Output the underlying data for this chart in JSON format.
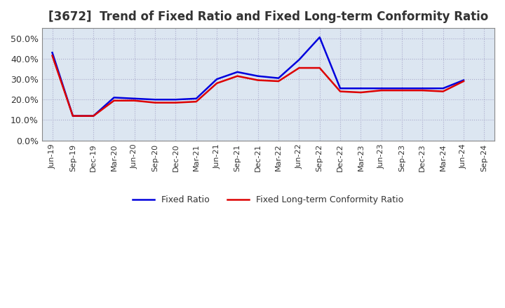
{
  "title": "[3672]  Trend of Fixed Ratio and Fixed Long-term Conformity Ratio",
  "title_fontsize": 12,
  "title_color": "#333333",
  "x_labels": [
    "Jun-19",
    "Sep-19",
    "Dec-19",
    "Mar-20",
    "Jun-20",
    "Sep-20",
    "Dec-20",
    "Mar-21",
    "Jun-21",
    "Sep-21",
    "Dec-21",
    "Mar-22",
    "Jun-22",
    "Sep-22",
    "Dec-22",
    "Mar-23",
    "Jun-23",
    "Sep-23",
    "Dec-23",
    "Mar-24",
    "Jun-24",
    "Sep-24"
  ],
  "fixed_ratio": [
    0.43,
    0.12,
    0.12,
    0.21,
    0.205,
    0.2,
    0.2,
    0.205,
    0.3,
    0.335,
    0.315,
    0.305,
    0.395,
    0.505,
    0.255,
    0.255,
    0.255,
    0.255,
    0.255,
    0.255,
    0.295,
    null
  ],
  "fixed_lt_ratio": [
    0.415,
    0.12,
    0.12,
    0.195,
    0.195,
    0.185,
    0.185,
    0.19,
    0.28,
    0.315,
    0.295,
    0.29,
    0.355,
    0.355,
    0.24,
    0.235,
    0.245,
    0.245,
    0.245,
    0.24,
    0.29,
    null
  ],
  "ylim": [
    0.0,
    0.55
  ],
  "yticks": [
    0.0,
    0.1,
    0.2,
    0.3,
    0.4,
    0.5
  ],
  "fixed_ratio_color": "#0000dd",
  "fixed_lt_ratio_color": "#dd0000",
  "background_color": "#ffffff",
  "plot_bg_color": "#dce6f1",
  "grid_color": "#aaaacc",
  "legend_labels": [
    "Fixed Ratio",
    "Fixed Long-term Conformity Ratio"
  ]
}
